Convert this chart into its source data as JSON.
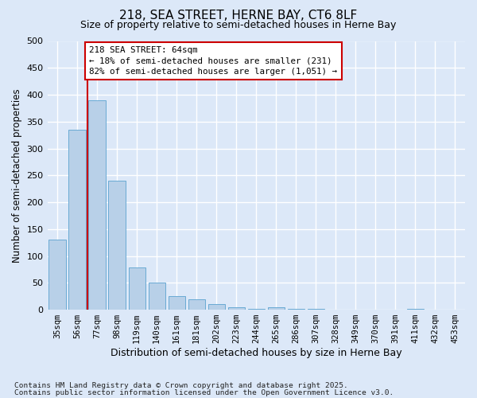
{
  "title1": "218, SEA STREET, HERNE BAY, CT6 8LF",
  "title2": "Size of property relative to semi-detached houses in Herne Bay",
  "xlabel": "Distribution of semi-detached houses by size in Herne Bay",
  "ylabel": "Number of semi-detached properties",
  "categories": [
    "35sqm",
    "56sqm",
    "77sqm",
    "98sqm",
    "119sqm",
    "140sqm",
    "161sqm",
    "181sqm",
    "202sqm",
    "223sqm",
    "244sqm",
    "265sqm",
    "286sqm",
    "307sqm",
    "328sqm",
    "349sqm",
    "370sqm",
    "391sqm",
    "411sqm",
    "432sqm",
    "453sqm"
  ],
  "values": [
    130,
    335,
    390,
    240,
    78,
    50,
    26,
    20,
    11,
    5,
    2,
    5,
    1,
    1,
    0,
    0,
    0,
    0,
    1,
    0,
    0
  ],
  "bar_color": "#b8d0e8",
  "bar_edge_color": "#6aaad4",
  "red_line_x": 1.5,
  "annotation_text": "218 SEA STREET: 64sqm\n← 18% of semi-detached houses are smaller (231)\n82% of semi-detached houses are larger (1,051) →",
  "annotation_box_facecolor": "#ffffff",
  "annotation_box_edgecolor": "#cc0000",
  "red_line_color": "#cc0000",
  "footnote1": "Contains HM Land Registry data © Crown copyright and database right 2025.",
  "footnote2": "Contains public sector information licensed under the Open Government Licence v3.0.",
  "background_color": "#dce8f8",
  "plot_bg_color": "#dce8f8",
  "ylim": [
    0,
    500
  ],
  "yticks": [
    0,
    50,
    100,
    150,
    200,
    250,
    300,
    350,
    400,
    450,
    500
  ]
}
